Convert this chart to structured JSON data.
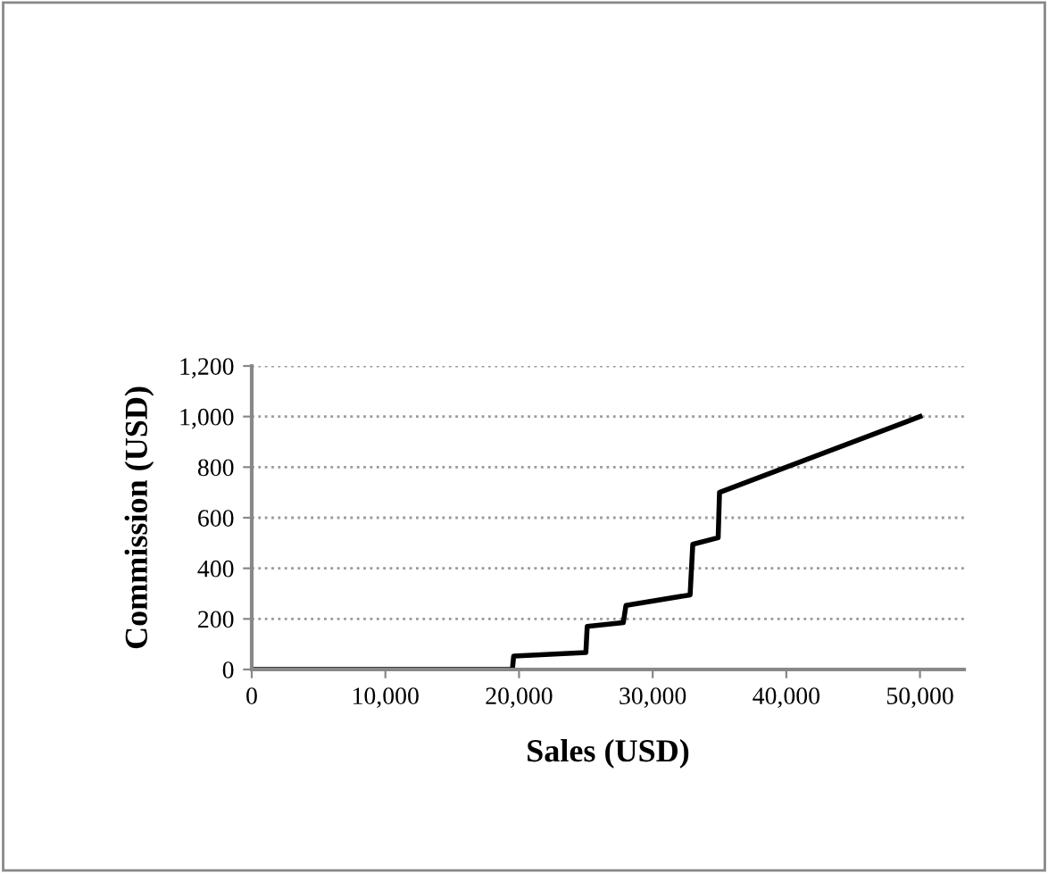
{
  "chart_data": {
    "type": "line",
    "xlabel": "Sales (USD)",
    "ylabel": "Commission (USD)",
    "x": [
      0,
      19500,
      19600,
      25000,
      25100,
      27800,
      28000,
      32800,
      33000,
      34900,
      35000,
      50000
    ],
    "series": [
      {
        "color": "#000000",
        "values": [
          0,
          0,
          53,
          67,
          170,
          185,
          253,
          295,
          495,
          521,
          700,
          1000
        ]
      }
    ],
    "xlim": [
      0,
      53300
    ],
    "xticks": [
      {
        "value": 0,
        "label": "0"
      },
      {
        "value": 10000,
        "label": "10,000"
      },
      {
        "value": 20000,
        "label": "20,000"
      },
      {
        "value": 30000,
        "label": "30,000"
      },
      {
        "value": 40000,
        "label": "40,000"
      },
      {
        "value": 50000,
        "label": "50,000"
      }
    ],
    "ylim": [
      0,
      1200
    ],
    "yticks": [
      {
        "value": 0,
        "label": "0"
      },
      {
        "value": 200,
        "label": "200"
      },
      {
        "value": 400,
        "label": "400"
      },
      {
        "value": 600,
        "label": "600"
      },
      {
        "value": 800,
        "label": "800"
      },
      {
        "value": 1000,
        "label": "1,000"
      },
      {
        "value": 1200,
        "label": "1,200"
      }
    ],
    "grid": "y",
    "legend": false
  }
}
